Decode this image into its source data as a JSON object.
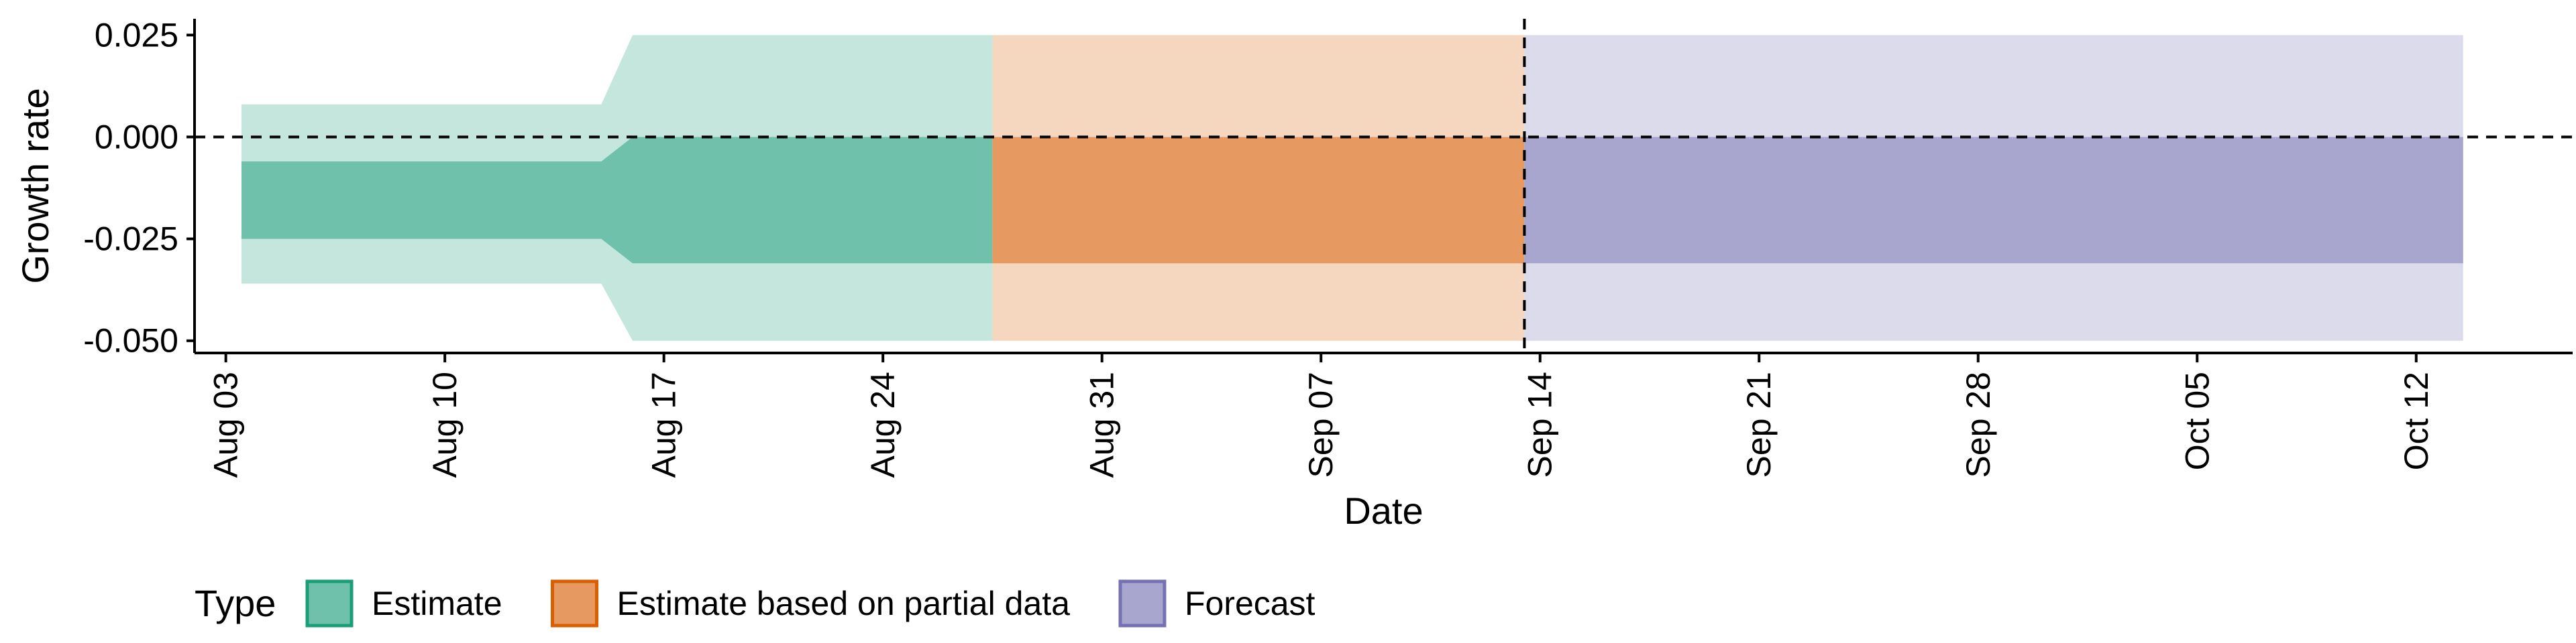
{
  "chart_data": {
    "type": "area",
    "xlabel": "Date",
    "ylabel": "Growth rate",
    "ylim": [
      -0.053,
      0.029
    ],
    "y_ticks": [
      {
        "value": 0.025,
        "label": "0.025"
      },
      {
        "value": 0.0,
        "label": "0.000"
      },
      {
        "value": -0.025,
        "label": "-0.025"
      },
      {
        "value": -0.05,
        "label": "-0.050"
      }
    ],
    "xlim": [
      "2020-08-02",
      "2020-10-17"
    ],
    "x_ticks": [
      {
        "date": "2020-08-03",
        "label": "Aug 03"
      },
      {
        "date": "2020-08-10",
        "label": "Aug 10"
      },
      {
        "date": "2020-08-17",
        "label": "Aug 17"
      },
      {
        "date": "2020-08-24",
        "label": "Aug 24"
      },
      {
        "date": "2020-08-31",
        "label": "Aug 31"
      },
      {
        "date": "2020-09-07",
        "label": "Sep 07"
      },
      {
        "date": "2020-09-14",
        "label": "Sep 14"
      },
      {
        "date": "2020-09-21",
        "label": "Sep 21"
      },
      {
        "date": "2020-09-28",
        "label": "Sep 28"
      },
      {
        "date": "2020-10-05",
        "label": "Oct 05"
      },
      {
        "date": "2020-10-12",
        "label": "Oct 12"
      }
    ],
    "reference_lines": [
      {
        "orientation": "horizontal",
        "value": 0.0,
        "style": "dashed"
      },
      {
        "orientation": "vertical",
        "date": "2020-09-13",
        "style": "dashed"
      }
    ],
    "legend": {
      "title": "Type",
      "placement": "bottom",
      "entries": [
        {
          "label": "Estimate",
          "fill": "#70c1ab",
          "border": "#1b9e77"
        },
        {
          "label": "Estimate based on partial data",
          "fill": "#e69a61",
          "border": "#d95f02"
        },
        {
          "label": "Forecast",
          "fill": "#a8a5cf",
          "border": "#7570b3"
        }
      ]
    },
    "series": [
      {
        "name": "Estimate",
        "inner_color": "#70c1ab",
        "outer_color": "#c5e6dd",
        "points": [
          {
            "date": "2020-08-04",
            "outer": [
              -0.036,
              0.008
            ],
            "inner": [
              -0.025,
              -0.006
            ]
          },
          {
            "date": "2020-08-15",
            "outer": [
              -0.036,
              0.008
            ],
            "inner": [
              -0.025,
              -0.006
            ]
          },
          {
            "date": "2020-08-16",
            "outer": [
              -0.05,
              0.025
            ],
            "inner": [
              -0.031,
              0.0
            ]
          },
          {
            "date": "2020-08-27",
            "outer": [
              -0.05,
              0.025
            ],
            "inner": [
              -0.031,
              0.0
            ]
          }
        ]
      },
      {
        "name": "Estimate based on partial data",
        "inner_color": "#e69a61",
        "outer_color": "#f5d6bf",
        "points": [
          {
            "date": "2020-08-28",
            "outer": [
              -0.05,
              0.025
            ],
            "inner": [
              -0.031,
              0.0
            ]
          },
          {
            "date": "2020-09-13",
            "outer": [
              -0.05,
              0.025
            ],
            "inner": [
              -0.031,
              0.0
            ]
          }
        ]
      },
      {
        "name": "Forecast",
        "inner_color": "#a8a5cf",
        "outer_color": "#dcdbec",
        "points": [
          {
            "date": "2020-09-14",
            "outer": [
              -0.05,
              0.025
            ],
            "inner": [
              -0.031,
              0.0
            ]
          },
          {
            "date": "2020-10-13",
            "outer": [
              -0.05,
              0.025
            ],
            "inner": [
              -0.031,
              0.0
            ]
          }
        ]
      }
    ]
  }
}
